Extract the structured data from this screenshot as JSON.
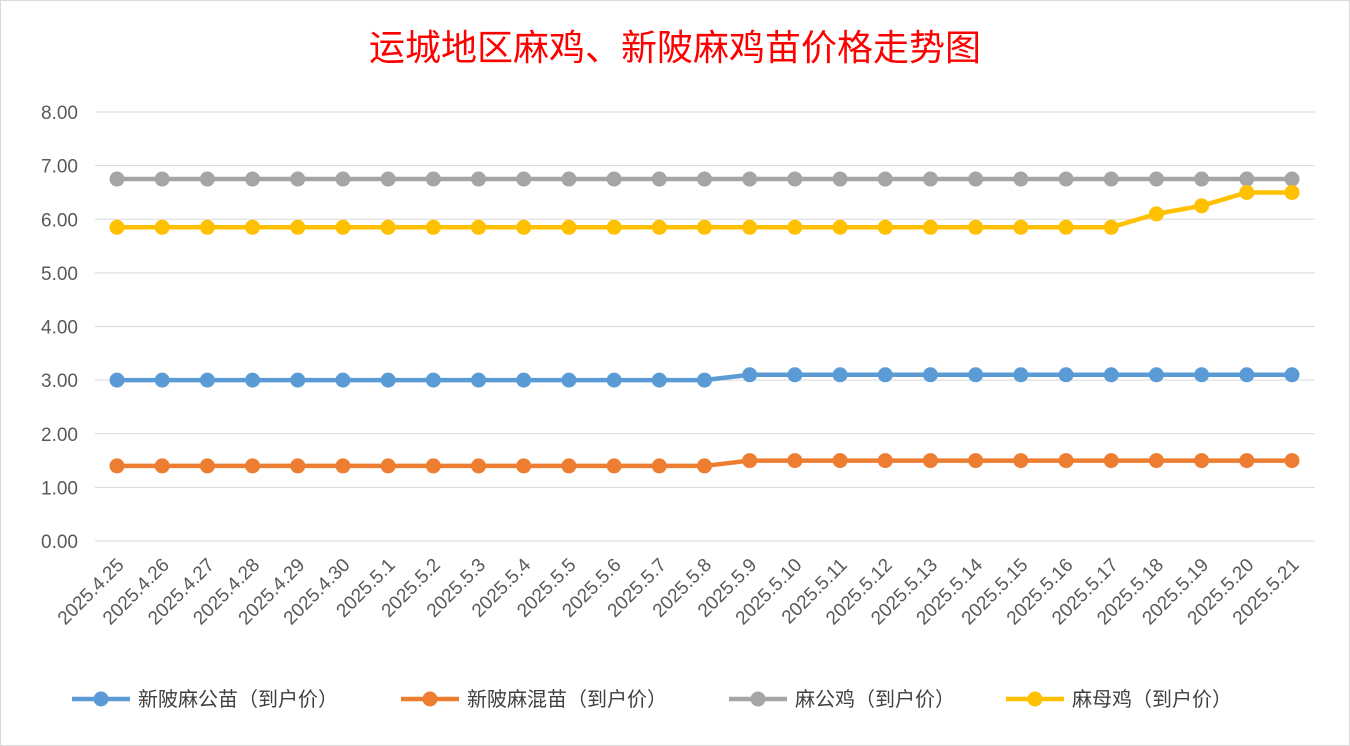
{
  "chart_data": {
    "type": "line",
    "title": "运城地区麻鸡、新陂麻鸡苗价格走势图",
    "xlabel": "",
    "ylabel": "",
    "ylim": [
      0,
      8
    ],
    "yticks": [
      "0.00",
      "1.00",
      "2.00",
      "3.00",
      "4.00",
      "5.00",
      "6.00",
      "7.00",
      "8.00"
    ],
    "grid": true,
    "legend_position": "bottom",
    "categories": [
      "2025.4.25",
      "2025.4.26",
      "2025.4.27",
      "2025.4.28",
      "2025.4.29",
      "2025.4.30",
      "2025.5.1",
      "2025.5.2",
      "2025.5.3",
      "2025.5.4",
      "2025.5.5",
      "2025.5.6",
      "2025.5.7",
      "2025.5.8",
      "2025.5.9",
      "2025.5.10",
      "2025.5.11",
      "2025.5.12",
      "2025.5.13",
      "2025.5.14",
      "2025.5.15",
      "2025.5.16",
      "2025.5.17",
      "2025.5.18",
      "2025.5.19",
      "2025.5.20",
      "2025.5.21"
    ],
    "series": [
      {
        "name": "新陂麻公苗（到户价）",
        "color": "#5b9bd5",
        "values": [
          3.0,
          3.0,
          3.0,
          3.0,
          3.0,
          3.0,
          3.0,
          3.0,
          3.0,
          3.0,
          3.0,
          3.0,
          3.0,
          3.0,
          3.1,
          3.1,
          3.1,
          3.1,
          3.1,
          3.1,
          3.1,
          3.1,
          3.1,
          3.1,
          3.1,
          3.1,
          3.1
        ]
      },
      {
        "name": "新陂麻混苗（到户价）",
        "color": "#ed7d31",
        "values": [
          1.4,
          1.4,
          1.4,
          1.4,
          1.4,
          1.4,
          1.4,
          1.4,
          1.4,
          1.4,
          1.4,
          1.4,
          1.4,
          1.4,
          1.5,
          1.5,
          1.5,
          1.5,
          1.5,
          1.5,
          1.5,
          1.5,
          1.5,
          1.5,
          1.5,
          1.5,
          1.5
        ]
      },
      {
        "name": "麻公鸡（到户价）",
        "color": "#a5a5a5",
        "values": [
          6.75,
          6.75,
          6.75,
          6.75,
          6.75,
          6.75,
          6.75,
          6.75,
          6.75,
          6.75,
          6.75,
          6.75,
          6.75,
          6.75,
          6.75,
          6.75,
          6.75,
          6.75,
          6.75,
          6.75,
          6.75,
          6.75,
          6.75,
          6.75,
          6.75,
          6.75,
          6.75
        ]
      },
      {
        "name": "麻母鸡（到户价）",
        "color": "#ffc000",
        "values": [
          5.85,
          5.85,
          5.85,
          5.85,
          5.85,
          5.85,
          5.85,
          5.85,
          5.85,
          5.85,
          5.85,
          5.85,
          5.85,
          5.85,
          5.85,
          5.85,
          5.85,
          5.85,
          5.85,
          5.85,
          5.85,
          5.85,
          5.85,
          6.1,
          6.25,
          6.5,
          6.5
        ]
      }
    ]
  }
}
